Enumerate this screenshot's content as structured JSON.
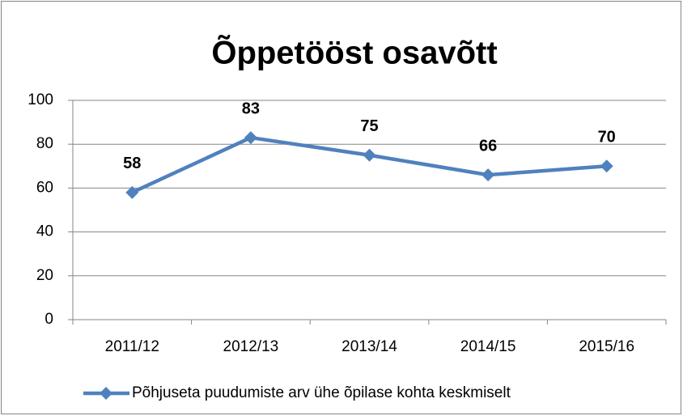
{
  "chart_data": {
    "type": "line",
    "title": "Õppetööst osavõtt",
    "categories": [
      "2011/12",
      "2012/13",
      "2013/14",
      "2014/15",
      "2015/16"
    ],
    "series": [
      {
        "name": "Põhjuseta puudumiste arv ühe õpilase kohta keskmiselt",
        "color": "#4f81bd",
        "values": [
          58,
          83,
          75,
          66,
          70
        ]
      }
    ],
    "ylim": [
      0,
      100
    ],
    "yticks": [
      0,
      20,
      40,
      60,
      80,
      100
    ],
    "grid": true,
    "legend": "bottom"
  }
}
